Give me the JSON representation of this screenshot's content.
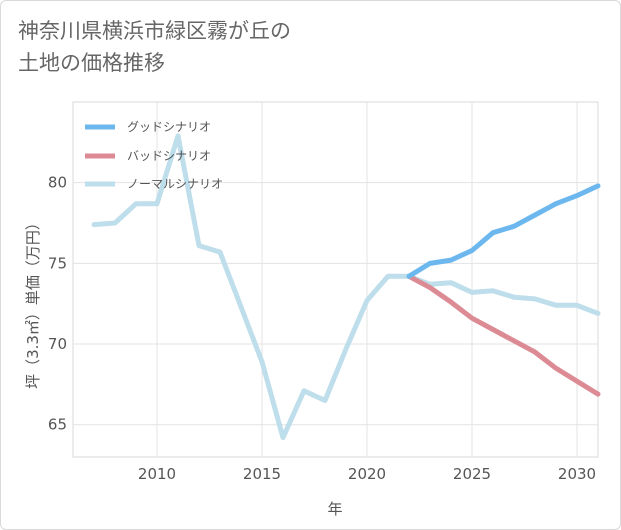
{
  "chart_data": {
    "type": "line",
    "title_lines": [
      "神奈川県横浜市緑区霧が丘の",
      "土地の価格推移"
    ],
    "xlabel": "年",
    "ylabel": "坪（3.3㎡）単価（万円）",
    "xlim": [
      2006,
      2031
    ],
    "ylim": [
      63,
      85
    ],
    "xticks": [
      2010,
      2015,
      2020,
      2025,
      2030
    ],
    "yticks": [
      65,
      70,
      75,
      80
    ],
    "grid": true,
    "legend_position": "top-left",
    "series": [
      {
        "name": "グッドシナリオ",
        "color": "#6cb8ee",
        "x": [
          2022,
          2023,
          2024,
          2025,
          2026,
          2027,
          2028,
          2029,
          2030,
          2031
        ],
        "values": [
          74.2,
          75.0,
          75.2,
          75.8,
          76.9,
          77.3,
          78.0,
          78.7,
          79.2,
          79.8
        ]
      },
      {
        "name": "バッドシナリオ",
        "color": "#dc8b94",
        "x": [
          2022,
          2023,
          2024,
          2025,
          2026,
          2027,
          2028,
          2029,
          2030,
          2031
        ],
        "values": [
          74.2,
          73.5,
          72.6,
          71.6,
          70.9,
          70.2,
          69.5,
          68.5,
          67.7,
          66.9
        ]
      },
      {
        "name": "ノーマルシナリオ",
        "color": "#bedeeb",
        "x": [
          2007,
          2008,
          2009,
          2010,
          2011,
          2012,
          2013,
          2014,
          2015,
          2016,
          2017,
          2018,
          2019,
          2020,
          2021,
          2022,
          2023,
          2024,
          2025,
          2026,
          2027,
          2028,
          2029,
          2030,
          2031
        ],
        "values": [
          77.4,
          77.5,
          78.7,
          78.7,
          82.9,
          76.1,
          75.7,
          72.3,
          68.9,
          64.2,
          67.1,
          66.5,
          69.7,
          72.7,
          74.2,
          74.2,
          73.7,
          73.8,
          73.2,
          73.3,
          72.9,
          72.8,
          72.4,
          72.4,
          71.9
        ]
      }
    ]
  }
}
